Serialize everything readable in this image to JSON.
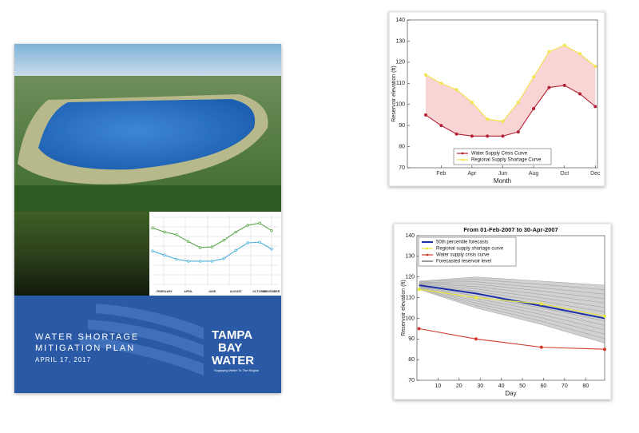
{
  "cover": {
    "title_line1": "WATER SHORTAGE",
    "title_line2": "MITIGATION PLAN",
    "date": "APRIL 17, 2017",
    "logo_line1": "TAMPA",
    "logo_line2": "BAY",
    "logo_line3": "WATER",
    "tagline": "Supplying Water To The Region"
  },
  "chart_data": [
    {
      "type": "line",
      "xlabel": "Month",
      "ylabel": "Reservoir elevation (ft)",
      "categories": [
        null,
        "Feb",
        null,
        "Apr",
        null,
        "Jun",
        null,
        "Aug",
        null,
        "Oct",
        null,
        "Dec"
      ],
      "ylim": [
        70,
        140
      ],
      "yticks": [
        70,
        80,
        90,
        100,
        110,
        120,
        130,
        140
      ],
      "fill_between": true,
      "legend": "lower center",
      "series": [
        {
          "name": "Water Supply Crisis Curve",
          "color": "#b22234",
          "marker": "circle",
          "values": [
            95,
            90,
            86,
            85,
            85,
            85,
            87,
            98,
            108,
            109,
            105,
            99
          ]
        },
        {
          "name": "Regional Supply Shortage Curve",
          "color": "#f2e44a",
          "marker": "circle",
          "values": [
            114,
            110,
            107,
            101,
            93,
            92,
            101,
            113,
            125,
            128,
            124,
            118
          ]
        }
      ]
    },
    {
      "type": "line",
      "title": "From 01-Feb-2007 to 30-Apr-2007",
      "xlabel": "Day",
      "ylabel": "Reservoir elevation (ft)",
      "x": [
        1,
        28,
        59,
        89
      ],
      "xlim": [
        0,
        89
      ],
      "xticks": [
        10,
        20,
        30,
        40,
        50,
        60,
        70,
        80
      ],
      "ylim": [
        70,
        140
      ],
      "yticks": [
        70,
        80,
        90,
        100,
        110,
        120,
        130,
        140
      ],
      "legend": "upper left",
      "series": [
        {
          "name": "50th percentile forecasts",
          "color": "#1a2fa8",
          "marker": "none",
          "values": [
            116,
            112,
            106,
            100
          ]
        },
        {
          "name": "Regional supply shortage curve",
          "color": "#e8e83a",
          "marker": "circle",
          "values": [
            114,
            110,
            107,
            101
          ]
        },
        {
          "name": "Water supply crisis curve",
          "color": "#d03a2e",
          "marker": "circle",
          "values": [
            95,
            90,
            86,
            85
          ]
        },
        {
          "name": "Forecasted reservoir level",
          "color": "#9a9a9a",
          "marker": "none",
          "lower": [
            114,
            105,
            97,
            88
          ],
          "upper": [
            118,
            120,
            118,
            116
          ]
        }
      ]
    },
    {
      "type": "line",
      "categories": [
        null,
        "FEBRUARY",
        null,
        "APRIL",
        null,
        "JUNE",
        null,
        "AUGUST",
        null,
        "OCTOBER",
        "NOVEMBER"
      ],
      "ylim": [
        0,
        10
      ],
      "series": [
        {
          "color": "#5aa84a",
          "marker": "circle",
          "values": [
            8.2,
            7.6,
            7.2,
            6.2,
            5.3,
            5.4,
            6.4,
            7.6,
            8.6,
            8.9,
            7.8
          ]
        },
        {
          "color": "#4ab0dc",
          "marker": "circle",
          "values": [
            4.8,
            4.2,
            3.6,
            3.3,
            3.3,
            3.3,
            3.7,
            4.9,
            6.0,
            6.1,
            5.1
          ]
        }
      ]
    }
  ]
}
